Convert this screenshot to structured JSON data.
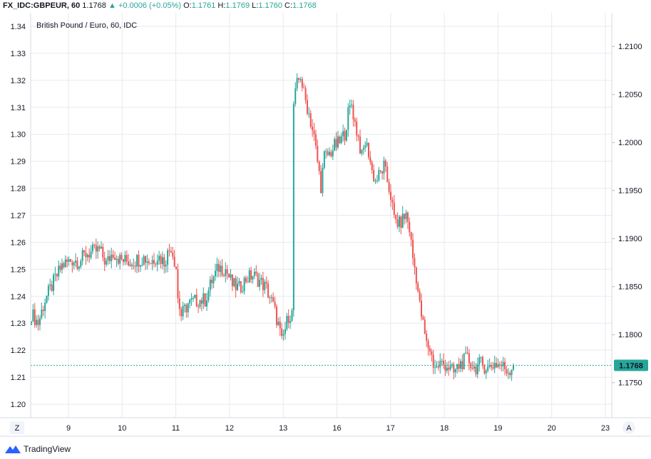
{
  "header": {
    "symbol": "FX_IDC:GBPEUR, 60",
    "last": "1.1768",
    "change": "+0.0006 (+0.05%)",
    "o_label": "O:",
    "o_value": "1.1761",
    "h_label": "H:",
    "h_value": "1.1769",
    "l_label": "L:",
    "l_value": "1.1760",
    "c_label": "C:",
    "c_value": "1.1768"
  },
  "legend_title": "British Pound / Euro, 60, IDC",
  "brand": "TradingView",
  "buttons": {
    "timezone": "Z",
    "auto_scale": "A"
  },
  "colors": {
    "up": "#26a69a",
    "down": "#ef5350",
    "grid": "#e6e9f0",
    "price_line": "#26a69a"
  },
  "chart_data": {
    "type": "candlestick",
    "title": "British Pound / Euro, 60, IDC",
    "x_tick_labels": [
      "9",
      "10",
      "11",
      "12",
      "13",
      "16",
      "17",
      "18",
      "19",
      "20",
      "23"
    ],
    "left_axis": {
      "ticks": [
        "1.34",
        "1.33",
        "1.32",
        "1.31",
        "1.30",
        "1.29",
        "1.28",
        "1.27",
        "1.26",
        "1.25",
        "1.24",
        "1.23",
        "1.22",
        "1.21",
        "1.20"
      ],
      "range": [
        1.195,
        1.345
      ]
    },
    "right_axis": {
      "ticks": [
        "1.2100",
        "1.2050",
        "1.2000",
        "1.1950",
        "1.1900",
        "1.1850",
        "1.1800",
        "1.1750"
      ],
      "range": [
        1.17135,
        1.2135
      ]
    },
    "last_price": "1.1768",
    "grid": true,
    "anchors": [
      [
        0,
        1.1822
      ],
      [
        4,
        1.1812
      ],
      [
        8,
        1.1836
      ],
      [
        14,
        1.1858
      ],
      [
        18,
        1.1872
      ],
      [
        24,
        1.1878
      ],
      [
        28,
        1.1876
      ],
      [
        32,
        1.1884
      ],
      [
        40,
        1.1888
      ],
      [
        44,
        1.1874
      ],
      [
        48,
        1.1886
      ],
      [
        52,
        1.1878
      ],
      [
        58,
        1.1876
      ],
      [
        62,
        1.1878
      ],
      [
        66,
        1.188
      ],
      [
        70,
        1.1876
      ],
      [
        74,
        1.1882
      ],
      [
        78,
        1.1876
      ],
      [
        82,
        1.1892
      ],
      [
        85,
        1.187
      ],
      [
        86,
        1.1838
      ],
      [
        88,
        1.182
      ],
      [
        92,
        1.1832
      ],
      [
        98,
        1.1836
      ],
      [
        102,
        1.1836
      ],
      [
        106,
        1.1856
      ],
      [
        110,
        1.187
      ],
      [
        114,
        1.1868
      ],
      [
        118,
        1.1852
      ],
      [
        122,
        1.1848
      ],
      [
        126,
        1.1858
      ],
      [
        130,
        1.1862
      ],
      [
        134,
        1.1856
      ],
      [
        138,
        1.1848
      ],
      [
        142,
        1.183
      ],
      [
        145,
        1.181
      ],
      [
        147,
        1.1792
      ],
      [
        149,
        1.1806
      ],
      [
        151,
        1.182
      ],
      [
        153,
        1.1822
      ],
      [
        154,
        1.204
      ],
      [
        156,
        1.206
      ],
      [
        158,
        1.207
      ],
      [
        160,
        1.205
      ],
      [
        163,
        1.203
      ],
      [
        166,
        1.2005
      ],
      [
        168,
        1.198
      ],
      [
        170,
        1.1955
      ],
      [
        172,
        1.1985
      ],
      [
        175,
        1.1988
      ],
      [
        178,
        1.1996
      ],
      [
        181,
        1.2
      ],
      [
        184,
        1.201
      ],
      [
        186,
        1.203
      ],
      [
        188,
        1.204
      ],
      [
        190,
        1.202
      ],
      [
        192,
        1.2005
      ],
      [
        194,
        1.1985
      ],
      [
        196,
        1.2
      ],
      [
        198,
        1.199
      ],
      [
        200,
        1.197
      ],
      [
        202,
        1.196
      ],
      [
        205,
        1.1968
      ],
      [
        207,
        1.1975
      ],
      [
        209,
        1.196
      ],
      [
        211,
        1.1945
      ],
      [
        213,
        1.192
      ],
      [
        216,
        1.1915
      ],
      [
        218,
        1.192
      ],
      [
        220,
        1.1925
      ],
      [
        222,
        1.191
      ],
      [
        224,
        1.188
      ],
      [
        226,
        1.186
      ],
      [
        228,
        1.183
      ],
      [
        230,
        1.181
      ],
      [
        232,
        1.179
      ],
      [
        234,
        1.1785
      ],
      [
        236,
        1.177
      ],
      [
        238,
        1.1765
      ],
      [
        240,
        1.177
      ],
      [
        244,
        1.1768
      ],
      [
        248,
        1.176
      ],
      [
        252,
        1.177
      ],
      [
        256,
        1.1775
      ],
      [
        260,
        1.1765
      ],
      [
        264,
        1.177
      ],
      [
        268,
        1.1765
      ],
      [
        272,
        1.177
      ],
      [
        276,
        1.1768
      ],
      [
        280,
        1.1762
      ],
      [
        283,
        1.1768
      ]
    ]
  }
}
